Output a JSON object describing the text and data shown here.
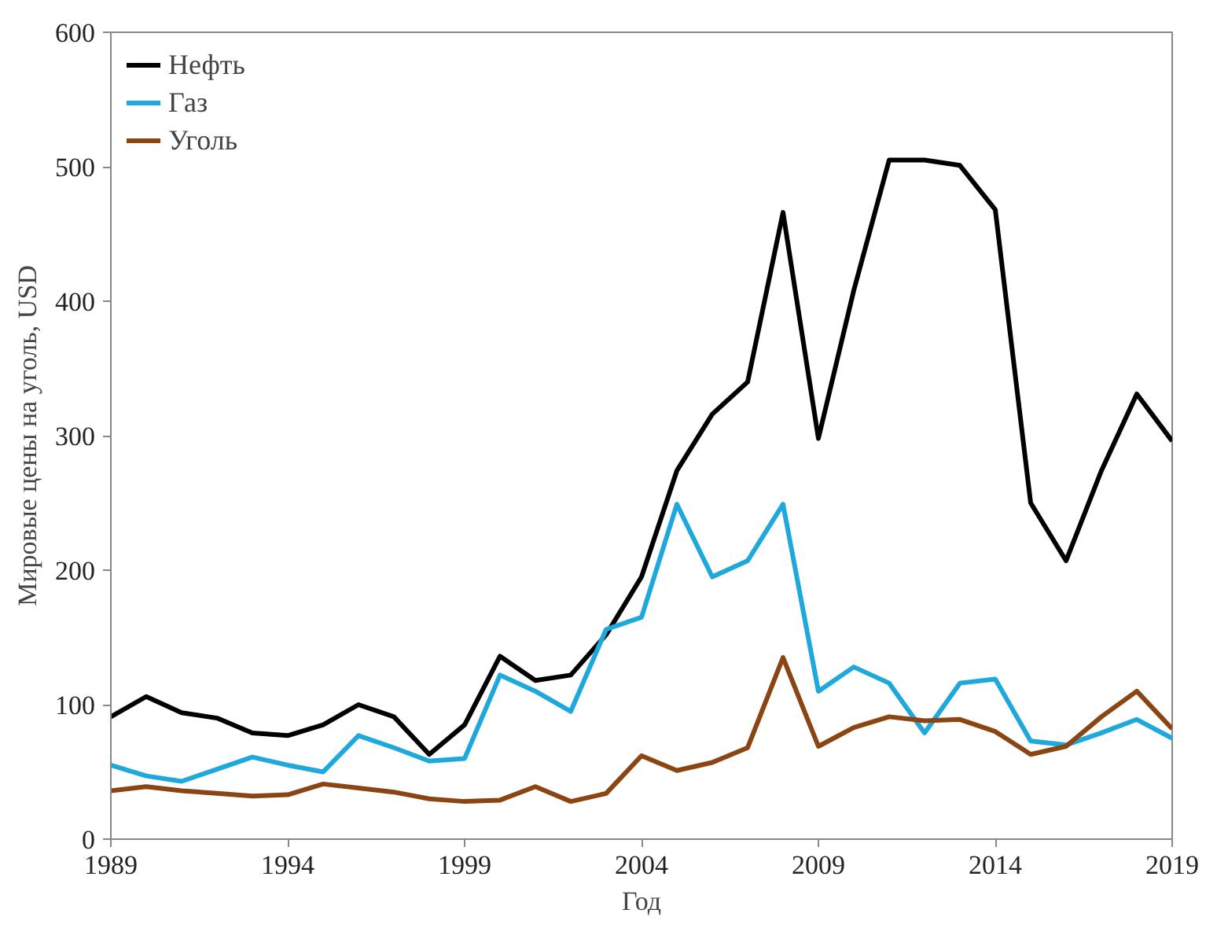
{
  "chart_data": {
    "type": "line",
    "xlabel": "Год",
    "ylabel": "Мировые цены на уголь, USD",
    "x": [
      1989,
      1990,
      1991,
      1992,
      1993,
      1994,
      1995,
      1996,
      1997,
      1998,
      1999,
      2000,
      2001,
      2002,
      2003,
      2004,
      2005,
      2006,
      2007,
      2008,
      2009,
      2010,
      2011,
      2012,
      2013,
      2014,
      2015,
      2016,
      2017,
      2018,
      2019
    ],
    "series": [
      {
        "name": "Нефть",
        "color": "#000000",
        "values": [
          91,
          106,
          94,
          90,
          79,
          77,
          85,
          100,
          91,
          63,
          85,
          136,
          118,
          122,
          152,
          195,
          274,
          316,
          340,
          466,
          298,
          408,
          505,
          505,
          501,
          468,
          250,
          207,
          274,
          331,
          296
        ]
      },
      {
        "name": "Газ",
        "color": "#1fa8dc",
        "values": [
          55,
          47,
          43,
          52,
          61,
          55,
          50,
          77,
          68,
          58,
          60,
          122,
          110,
          95,
          156,
          165,
          249,
          195,
          207,
          249,
          110,
          128,
          116,
          79,
          116,
          119,
          73,
          70,
          79,
          89,
          75
        ]
      },
      {
        "name": "Уголь",
        "color": "#8b4513",
        "values": [
          36,
          39,
          36,
          34,
          32,
          33,
          41,
          38,
          35,
          30,
          28,
          29,
          39,
          28,
          34,
          62,
          51,
          57,
          68,
          135,
          69,
          83,
          91,
          88,
          89,
          80,
          63,
          69,
          91,
          110,
          82
        ]
      }
    ],
    "xlim": [
      1989,
      2019
    ],
    "xticks": [
      1989,
      1994,
      1999,
      2004,
      2009,
      2014,
      2019
    ],
    "ylim": [
      0,
      600
    ],
    "yticks": [
      0,
      100,
      200,
      300,
      400,
      500,
      600
    ],
    "grid": false,
    "legend": "top left",
    "line_style": "solid",
    "marker": "none"
  }
}
